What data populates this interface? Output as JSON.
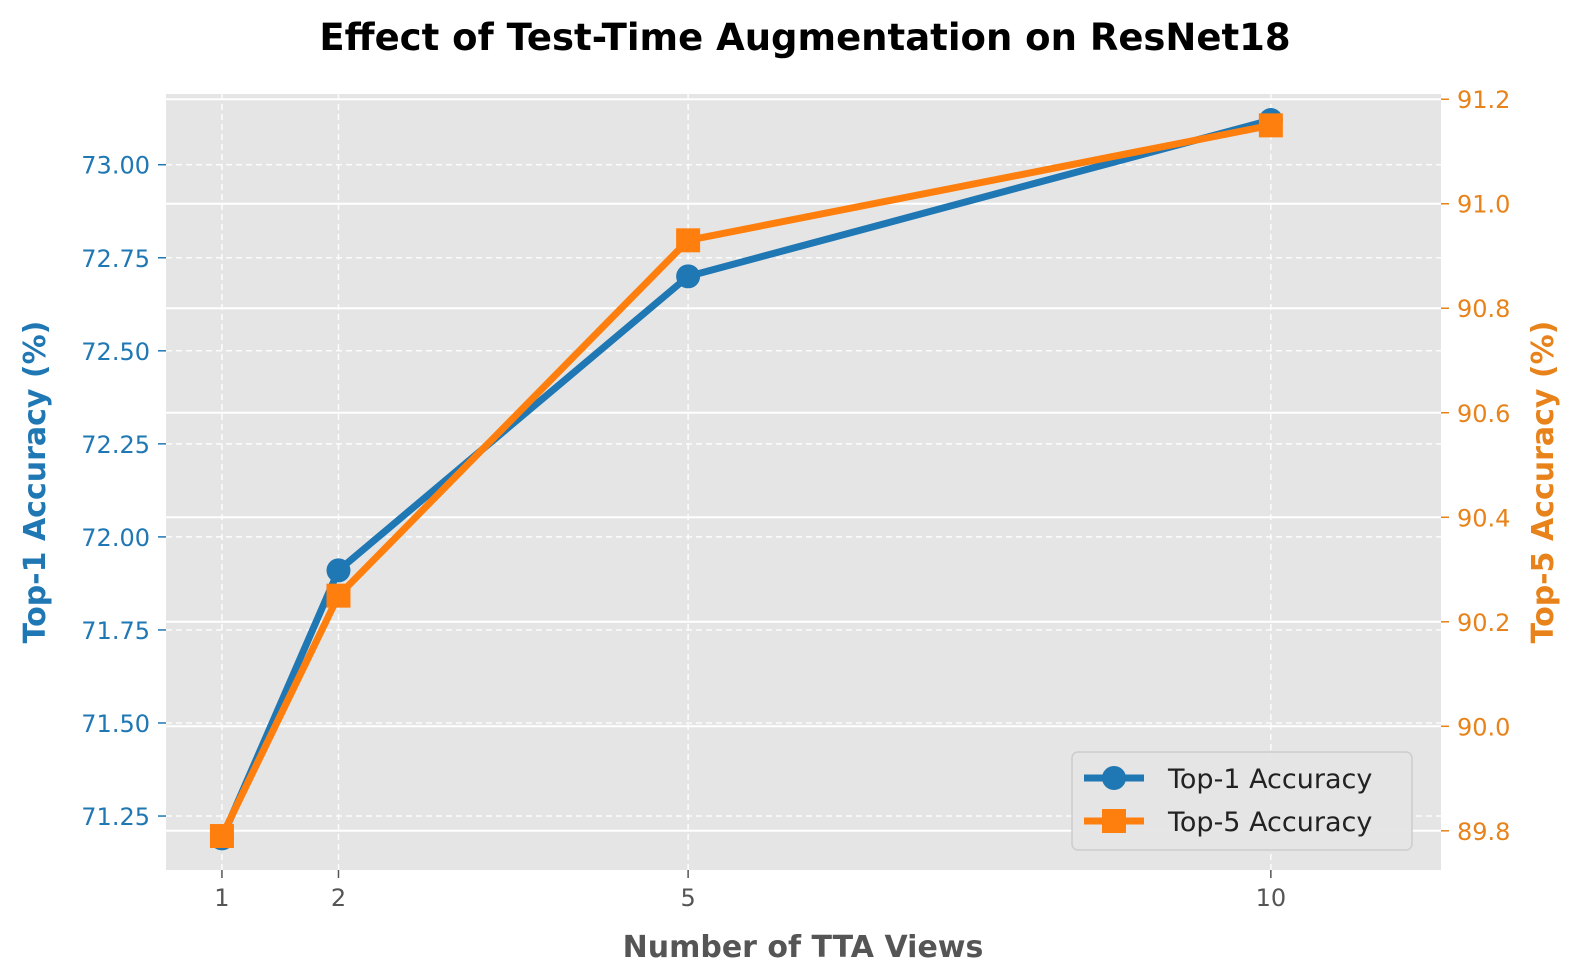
{
  "chart_data": {
    "type": "line",
    "title": "Effect of Test-Time Augmentation on ResNet18",
    "xlabel": "Number of TTA Views",
    "ylabel_left": "Top-1 Accuracy (%)",
    "ylabel_right": "Top-5 Accuracy (%)",
    "x": [
      1,
      2,
      5,
      10
    ],
    "x_ticks": [
      1,
      2,
      5,
      10
    ],
    "xlim": [
      0.52,
      11.46
    ],
    "ylim_left": [
      71.105,
      73.19
    ],
    "ylim_right": [
      89.725,
      91.21
    ],
    "y_ticks_left": [
      "71.25",
      "71.50",
      "71.75",
      "72.00",
      "72.25",
      "72.50",
      "72.75",
      "73.00"
    ],
    "y_ticks_right": [
      "89.8",
      "90.0",
      "90.2",
      "90.4",
      "90.6",
      "90.8",
      "91.0",
      "91.2"
    ],
    "grid": true,
    "legend": "lower right",
    "series": [
      {
        "name": "Top-1 Accuracy",
        "axis": "left",
        "values": [
          71.19,
          71.91,
          72.7,
          73.12
        ],
        "color": "#1f77b4",
        "marker": "circle"
      },
      {
        "name": "Top-5 Accuracy",
        "axis": "right",
        "values": [
          89.79,
          90.25,
          90.93,
          91.15
        ],
        "color": "#ff7f0e",
        "marker": "square"
      }
    ],
    "colors": {
      "plot_background": "#e5e5e5",
      "left_axis": "#1f77b4",
      "right_axis": "#e8821a",
      "x_axis": "#555555"
    }
  }
}
